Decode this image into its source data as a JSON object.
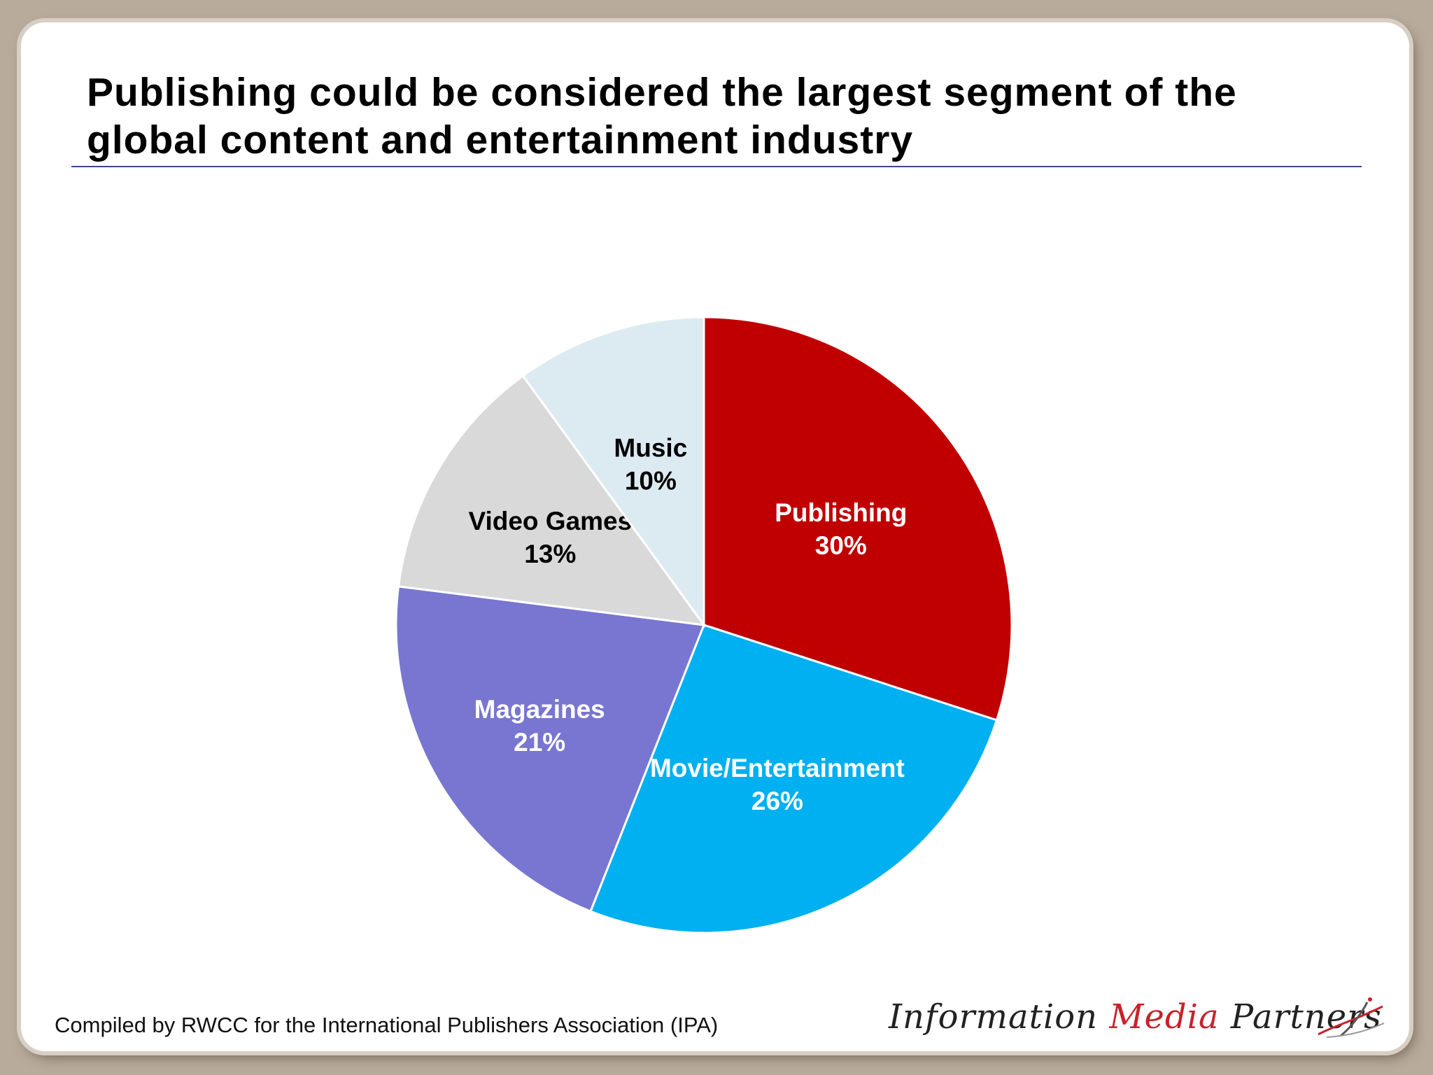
{
  "slide": {
    "title": "Publishing could be considered the largest segment of the global content and entertainment industry",
    "footer": "Compiled by RWCC for the International Publishers Association (IPA)",
    "logo": {
      "part1": "Information ",
      "part2": "Media",
      "part3": " Partners"
    }
  },
  "chart_data": {
    "type": "pie",
    "title": "",
    "start_angle": "12 o'clock",
    "direction": "clockwise",
    "slices": [
      {
        "label": "Publishing",
        "value": 30,
        "display": "30%",
        "color": "#c00000",
        "label_color": "#ffffff"
      },
      {
        "label": "Movie/Entertainment",
        "value": 26,
        "display": "26%",
        "color": "#00b0f0",
        "label_color": "#ffffff"
      },
      {
        "label": "Magazines",
        "value": 21,
        "display": "21%",
        "color": "#7876d0",
        "label_color": "#ffffff"
      },
      {
        "label": "Video Games",
        "value": 13,
        "display": "13%",
        "color": "#d9d9d9",
        "label_color": "#000000"
      },
      {
        "label": "Music",
        "value": 10,
        "display": "10%",
        "color": "#dcebf1",
        "label_color": "#000000"
      }
    ]
  }
}
